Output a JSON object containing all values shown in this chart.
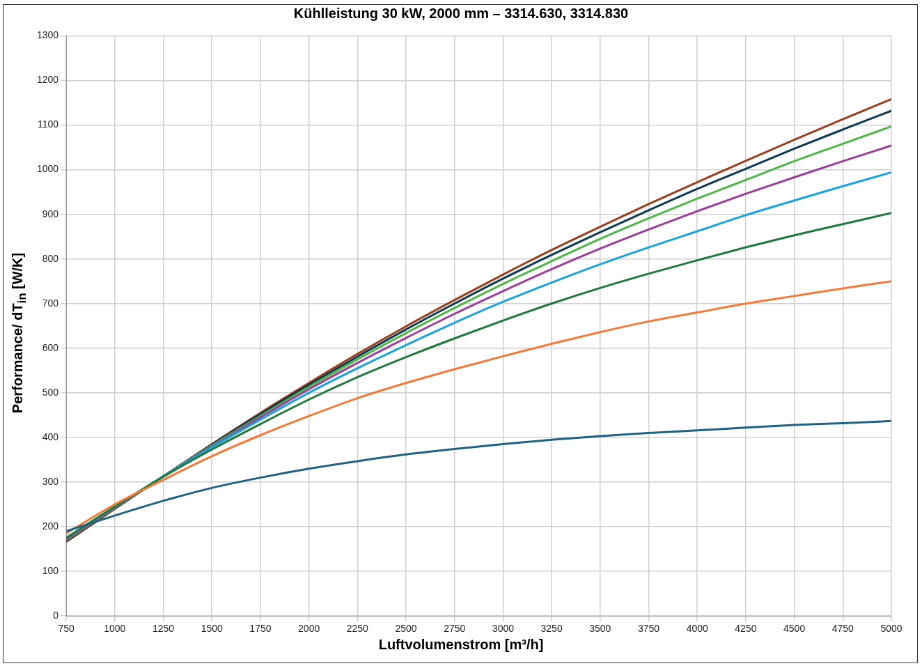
{
  "chart_data": {
    "type": "line",
    "title": "Kühlleistung 30 kW, 2000 mm – 3314.630, 3314.830",
    "xlabel": "Luftvolumenstrom [m³/h]",
    "ylabel": "Performance/ dT$_{in}$ [W/K]",
    "x": [
      750,
      1000,
      1250,
      1500,
      1750,
      2000,
      2250,
      2500,
      2750,
      3000,
      3250,
      3500,
      3750,
      4000,
      4250,
      4500,
      4750,
      5000
    ],
    "series": [
      {
        "color": "#1f6283",
        "values": [
          190,
          225,
          258,
          287,
          310,
          330,
          347,
          362,
          374,
          385,
          395,
          403,
          410,
          416,
          422,
          428,
          432,
          437
        ]
      },
      {
        "color": "#f47a3a",
        "values": [
          185,
          250,
          305,
          358,
          405,
          448,
          488,
          522,
          553,
          582,
          610,
          636,
          660,
          680,
          700,
          717,
          734,
          750
        ]
      },
      {
        "color": "#1e7a3a",
        "values": [
          175,
          245,
          312,
          373,
          430,
          485,
          535,
          580,
          622,
          662,
          700,
          735,
          767,
          797,
          826,
          853,
          878,
          903
        ]
      },
      {
        "color": "#1aa3dd",
        "values": [
          175,
          245,
          313,
          378,
          440,
          500,
          555,
          607,
          657,
          704,
          747,
          788,
          826,
          862,
          898,
          931,
          963,
          994
        ]
      },
      {
        "color": "#9b3d99",
        "values": [
          172,
          243,
          313,
          380,
          445,
          508,
          567,
          623,
          677,
          728,
          777,
          823,
          866,
          907,
          946,
          983,
          1019,
          1054
        ]
      },
      {
        "color": "#4db848",
        "values": [
          170,
          242,
          313,
          382,
          448,
          513,
          575,
          634,
          690,
          744,
          795,
          845,
          891,
          935,
          977,
          1019,
          1058,
          1097
        ]
      },
      {
        "color": "#0d3a4f",
        "values": [
          168,
          241,
          313,
          384,
          452,
          518,
          581,
          642,
          700,
          756,
          809,
          860,
          909,
          957,
          1002,
          1047,
          1090,
          1132
        ]
      },
      {
        "color": "#9b3f1e",
        "values": [
          166,
          240,
          313,
          385,
          455,
          522,
          587,
          649,
          708,
          765,
          820,
          872,
          923,
          972,
          1020,
          1067,
          1113,
          1158
        ]
      }
    ],
    "xlim": [
      750,
      5000
    ],
    "xticks": [
      750,
      1000,
      1250,
      1500,
      1750,
      2000,
      2250,
      2500,
      2750,
      3000,
      3250,
      3500,
      3750,
      4000,
      4250,
      4500,
      4750,
      5000
    ],
    "ylim": [
      0,
      1300
    ],
    "yticks": [
      0,
      100,
      200,
      300,
      400,
      500,
      600,
      700,
      800,
      900,
      1000,
      1100,
      1200,
      1300
    ],
    "grid": true,
    "legend": false,
    "marker": "none",
    "line_style": "solid"
  }
}
